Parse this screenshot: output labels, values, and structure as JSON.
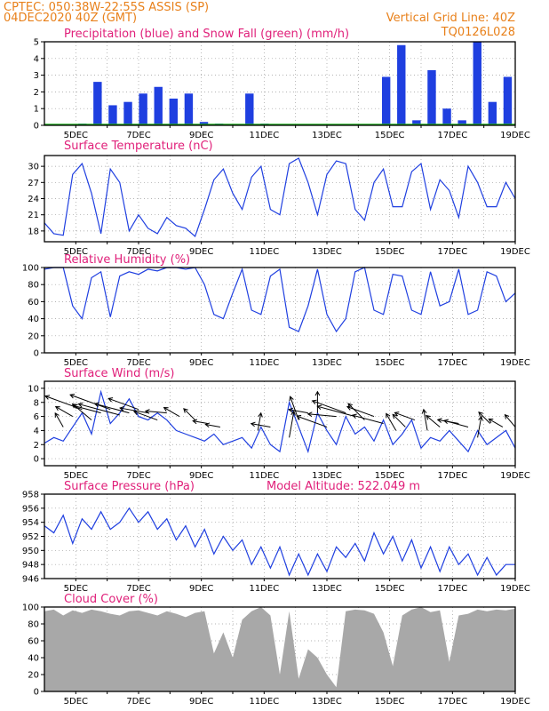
{
  "header": {
    "line1": "CPTEC:   050:38W-22:55S   ASSIS (SP)",
    "line2": "04DEC2020 40Z (GMT)",
    "grid_note": "Vertical Grid Line: 40Z",
    "code": "TQ0126L028"
  },
  "colors": {
    "header_text": "#e8801a",
    "panel_title": "#e0207a",
    "line": "#1f3fe0",
    "snow": "#20b020",
    "cloud": "#a8a8a8",
    "grid": "#9a9a9a"
  },
  "x_ticks": [
    "5DEC",
    "7DEC",
    "9DEC",
    "11DEC",
    "13DEC",
    "15DEC",
    "17DEC",
    "19DEC"
  ],
  "chart_data": [
    {
      "type": "bar",
      "title": "Precipitation (blue) and Snow Fall (green) (mm/h)",
      "ylim": [
        0,
        5
      ],
      "y_ticks": [
        "0",
        "1",
        "2",
        "3",
        "4",
        "5"
      ],
      "x": [
        "4DEC",
        "4.5DEC",
        "5DEC",
        "5.5DEC",
        "6DEC",
        "6.5DEC",
        "7DEC",
        "7.5DEC",
        "8DEC",
        "8.5DEC",
        "9DEC",
        "9.5DEC",
        "10DEC",
        "10.5DEC",
        "11DEC",
        "11.5DEC",
        "12DEC",
        "12.5DEC",
        "13DEC",
        "13.5DEC",
        "14DEC",
        "14.5DEC",
        "15DEC",
        "15.5DEC",
        "16DEC",
        "16.5DEC",
        "17DEC",
        "17.5DEC",
        "18DEC",
        "18.5DEC",
        "19DEC"
      ],
      "series": [
        {
          "name": "Precipitation",
          "values": [
            0,
            0,
            0.1,
            2.6,
            1.2,
            1.4,
            1.9,
            2.3,
            1.6,
            1.9,
            0.2,
            0.1,
            0,
            1.9,
            0.1,
            0,
            0,
            0,
            0,
            0,
            0,
            0,
            2.9,
            4.8,
            0.3,
            3.3,
            1.0,
            0.3,
            5.0,
            1.4,
            2.9
          ]
        },
        {
          "name": "Snow Fall",
          "values": [
            0,
            0,
            0,
            0,
            0,
            0,
            0,
            0,
            0,
            0,
            0,
            0,
            0,
            0,
            0,
            0,
            0,
            0,
            0,
            0,
            0,
            0,
            0,
            0,
            0,
            0,
            0,
            0,
            0,
            0,
            0
          ]
        }
      ]
    },
    {
      "type": "line",
      "title": "Surface Temperature (nC)",
      "ylim": [
        16,
        32
      ],
      "y_ticks": [
        "18",
        "21",
        "24",
        "27",
        "30"
      ],
      "x": [
        4.0,
        4.3,
        4.6,
        4.9,
        5.2,
        5.5,
        5.8,
        6.1,
        6.4,
        6.7,
        7.0,
        7.3,
        7.6,
        7.9,
        8.2,
        8.5,
        8.8,
        9.1,
        9.4,
        9.7,
        10.0,
        10.3,
        10.6,
        10.9,
        11.2,
        11.5,
        11.8,
        12.1,
        12.4,
        12.7,
        13.0,
        13.3,
        13.6,
        13.9,
        14.2,
        14.5,
        14.8,
        15.1,
        15.4,
        15.7,
        16.0,
        16.3,
        16.6,
        16.9,
        17.2,
        17.5,
        17.8,
        18.1,
        18.4,
        18.7,
        19.0
      ],
      "series": [
        {
          "name": "Surface Temperature",
          "values": [
            19.5,
            17.5,
            17.2,
            28.5,
            30.5,
            25.0,
            17.5,
            29.5,
            27.0,
            18.0,
            21.0,
            18.5,
            17.5,
            20.5,
            19.0,
            18.5,
            17.0,
            22.0,
            27.5,
            29.5,
            25.0,
            22.0,
            28.0,
            30.0,
            22.0,
            21.0,
            30.5,
            31.5,
            27.0,
            21.0,
            28.5,
            31.0,
            30.5,
            22.0,
            20.0,
            27.0,
            29.5,
            22.5,
            22.5,
            29.0,
            30.5,
            22.0,
            27.5,
            25.5,
            20.5,
            30.0,
            27.0,
            22.5,
            22.5,
            27.0,
            24.0
          ]
        }
      ]
    },
    {
      "type": "line",
      "title": "Relative Humidity (%)",
      "ylim": [
        0,
        100
      ],
      "y_ticks": [
        "0",
        "20",
        "40",
        "60",
        "80",
        "100"
      ],
      "x": [
        4.0,
        4.3,
        4.6,
        4.9,
        5.2,
        5.5,
        5.8,
        6.1,
        6.4,
        6.7,
        7.0,
        7.3,
        7.6,
        7.9,
        8.2,
        8.5,
        8.8,
        9.1,
        9.4,
        9.7,
        10.0,
        10.3,
        10.6,
        10.9,
        11.2,
        11.5,
        11.8,
        12.1,
        12.4,
        12.7,
        13.0,
        13.3,
        13.6,
        13.9,
        14.2,
        14.5,
        14.8,
        15.1,
        15.4,
        15.7,
        16.0,
        16.3,
        16.6,
        16.9,
        17.2,
        17.5,
        17.8,
        18.1,
        18.4,
        18.7,
        19.0
      ],
      "series": [
        {
          "name": "Relative Humidity",
          "values": [
            98,
            100,
            100,
            55,
            40,
            88,
            95,
            42,
            90,
            95,
            92,
            98,
            96,
            100,
            100,
            98,
            100,
            80,
            45,
            40,
            70,
            98,
            50,
            45,
            90,
            98,
            30,
            25,
            55,
            98,
            45,
            25,
            40,
            95,
            100,
            50,
            45,
            92,
            90,
            50,
            45,
            95,
            55,
            60,
            98,
            45,
            50,
            95,
            90,
            60,
            70
          ]
        }
      ]
    },
    {
      "type": "line",
      "title": "Surface Wind (m/s)",
      "ylim": [
        -1,
        11
      ],
      "y_ticks": [
        "0",
        "2",
        "4",
        "6",
        "8",
        "10"
      ],
      "x": [
        4.0,
        4.3,
        4.6,
        4.9,
        5.2,
        5.5,
        5.8,
        6.1,
        6.4,
        6.7,
        7.0,
        7.3,
        7.6,
        7.9,
        8.2,
        8.5,
        8.8,
        9.1,
        9.4,
        9.7,
        10.0,
        10.3,
        10.6,
        10.9,
        11.2,
        11.5,
        11.8,
        12.1,
        12.4,
        12.7,
        13.0,
        13.3,
        13.6,
        13.9,
        14.2,
        14.5,
        14.8,
        15.1,
        15.4,
        15.7,
        16.0,
        16.3,
        16.6,
        16.9,
        17.2,
        17.5,
        17.8,
        18.1,
        18.4,
        18.7,
        19.0
      ],
      "series": [
        {
          "name": "Surface Wind",
          "values": [
            2.2,
            3.0,
            2.5,
            4.5,
            6.5,
            3.5,
            9.5,
            5.0,
            6.5,
            8.5,
            6.0,
            5.5,
            6.5,
            5.5,
            4.0,
            3.5,
            3.0,
            2.5,
            3.5,
            2.0,
            2.5,
            3.0,
            1.5,
            4.5,
            2.0,
            1.0,
            8.0,
            4.5,
            1.0,
            6.5,
            4.0,
            2.0,
            6.0,
            3.5,
            4.5,
            2.5,
            5.5,
            2.0,
            3.5,
            5.5,
            1.5,
            3.0,
            2.5,
            4.0,
            2.5,
            1.0,
            4.0,
            2.0,
            3.0,
            4.0,
            1.5
          ]
        }
      ],
      "vectors": [
        {
          "x": 4.6,
          "y": 4.5,
          "angle": -120,
          "len": 0.15
        },
        {
          "x": 4.9,
          "y": 6.0,
          "angle": -150,
          "len": 0.25
        },
        {
          "x": 5.2,
          "y": 7.0,
          "angle": -160,
          "len": 0.8
        },
        {
          "x": 5.5,
          "y": 5.5,
          "angle": -140,
          "len": 0.4
        },
        {
          "x": 5.8,
          "y": 6.5,
          "angle": -165,
          "len": 0.5
        },
        {
          "x": 6.1,
          "y": 7.0,
          "angle": -160,
          "len": 0.9
        },
        {
          "x": 6.4,
          "y": 6.2,
          "angle": -165,
          "len": 0.9
        },
        {
          "x": 6.7,
          "y": 6.5,
          "angle": -165,
          "len": 0.7
        },
        {
          "x": 7.0,
          "y": 7.0,
          "angle": -160,
          "len": 0.6
        },
        {
          "x": 7.3,
          "y": 6.5,
          "angle": -170,
          "len": 0.5
        },
        {
          "x": 7.6,
          "y": 5.5,
          "angle": -160,
          "len": 0.4
        },
        {
          "x": 7.9,
          "y": 6.5,
          "angle": -175,
          "len": 0.3
        },
        {
          "x": 8.3,
          "y": 6.0,
          "angle": -150,
          "len": 0.2
        },
        {
          "x": 8.8,
          "y": 5.5,
          "angle": -135,
          "len": 0.15
        },
        {
          "x": 9.2,
          "y": 5.0,
          "angle": -170,
          "len": 0.12
        },
        {
          "x": 9.6,
          "y": 4.5,
          "angle": -170,
          "len": 0.12
        },
        {
          "x": 10.8,
          "y": 4.0,
          "angle": -80,
          "len": 0.2
        },
        {
          "x": 11.2,
          "y": 4.5,
          "angle": -170,
          "len": 0.25
        },
        {
          "x": 11.8,
          "y": 3.0,
          "angle": -80,
          "len": 0.45
        },
        {
          "x": 12.1,
          "y": 5.5,
          "angle": -110,
          "len": 0.4
        },
        {
          "x": 12.4,
          "y": 6.5,
          "angle": -170,
          "len": 0.25
        },
        {
          "x": 12.7,
          "y": 6.5,
          "angle": -90,
          "len": 0.3
        },
        {
          "x": 13.0,
          "y": 4.5,
          "angle": -160,
          "len": 0.6
        },
        {
          "x": 13.3,
          "y": 6.0,
          "angle": -175,
          "len": 0.5
        },
        {
          "x": 13.6,
          "y": 6.5,
          "angle": -160,
          "len": 0.7
        },
        {
          "x": 13.9,
          "y": 6.0,
          "angle": -165,
          "len": 0.8
        },
        {
          "x": 14.2,
          "y": 5.5,
          "angle": -135,
          "len": 0.35
        },
        {
          "x": 14.5,
          "y": 6.0,
          "angle": -160,
          "len": 0.5
        },
        {
          "x": 14.8,
          "y": 5.0,
          "angle": -165,
          "len": 0.6
        },
        {
          "x": 15.2,
          "y": 4.0,
          "angle": -120,
          "len": 0.25
        },
        {
          "x": 15.5,
          "y": 4.5,
          "angle": -135,
          "len": 0.2
        },
        {
          "x": 15.8,
          "y": 5.5,
          "angle": -160,
          "len": 0.3
        },
        {
          "x": 16.2,
          "y": 4.0,
          "angle": -100,
          "len": 0.3
        },
        {
          "x": 16.6,
          "y": 4.5,
          "angle": -140,
          "len": 0.2
        },
        {
          "x": 17.2,
          "y": 5.0,
          "angle": -170,
          "len": 0.3
        },
        {
          "x": 17.5,
          "y": 4.5,
          "angle": -165,
          "len": 0.4
        },
        {
          "x": 17.8,
          "y": 3.0,
          "angle": -80,
          "len": 0.3
        },
        {
          "x": 18.2,
          "y": 5.0,
          "angle": -135,
          "len": 0.15
        },
        {
          "x": 18.6,
          "y": 4.5,
          "angle": -150,
          "len": 0.15
        },
        {
          "x": 19.0,
          "y": 4.5,
          "angle": -130,
          "len": 0.15
        }
      ]
    },
    {
      "type": "line",
      "title": "Surface Pressure (hPa)",
      "annotation": "Model Altitude: 522.049 m",
      "ylim": [
        946,
        958
      ],
      "y_ticks": [
        "946",
        "948",
        "950",
        "952",
        "954",
        "956",
        "958"
      ],
      "x": [
        4.0,
        4.3,
        4.6,
        4.9,
        5.2,
        5.5,
        5.8,
        6.1,
        6.4,
        6.7,
        7.0,
        7.3,
        7.6,
        7.9,
        8.2,
        8.5,
        8.8,
        9.1,
        9.4,
        9.7,
        10.0,
        10.3,
        10.6,
        10.9,
        11.2,
        11.5,
        11.8,
        12.1,
        12.4,
        12.7,
        13.0,
        13.3,
        13.6,
        13.9,
        14.2,
        14.5,
        14.8,
        15.1,
        15.4,
        15.7,
        16.0,
        16.3,
        16.6,
        16.9,
        17.2,
        17.5,
        17.8,
        18.1,
        18.4,
        18.7,
        19.0
      ],
      "series": [
        {
          "name": "Surface Pressure",
          "values": [
            953.5,
            952.5,
            955.0,
            951.0,
            954.5,
            953.0,
            955.5,
            953.0,
            954.0,
            956.0,
            954.0,
            955.5,
            953.0,
            954.5,
            951.5,
            953.5,
            950.5,
            953.0,
            949.5,
            952.0,
            950.0,
            951.5,
            948.0,
            950.5,
            947.5,
            950.5,
            946.5,
            949.5,
            946.5,
            949.5,
            947.0,
            950.5,
            949.0,
            951.0,
            948.5,
            952.5,
            949.5,
            952.0,
            948.5,
            951.5,
            947.5,
            950.5,
            947.0,
            950.5,
            948.0,
            949.5,
            946.5,
            949.0,
            946.5,
            948.0,
            948.0
          ]
        }
      ]
    },
    {
      "type": "area",
      "title": "Cloud Cover (%)",
      "ylim": [
        0,
        100
      ],
      "y_ticks": [
        "0",
        "20",
        "40",
        "60",
        "80",
        "100"
      ],
      "x": [
        4.0,
        4.3,
        4.6,
        4.9,
        5.2,
        5.5,
        5.8,
        6.1,
        6.4,
        6.7,
        7.0,
        7.3,
        7.6,
        7.9,
        8.2,
        8.5,
        8.8,
        9.1,
        9.4,
        9.7,
        10.0,
        10.3,
        10.6,
        10.9,
        11.2,
        11.5,
        11.8,
        12.1,
        12.4,
        12.7,
        13.0,
        13.3,
        13.6,
        13.9,
        14.2,
        14.5,
        14.8,
        15.1,
        15.4,
        15.7,
        16.0,
        16.3,
        16.6,
        16.9,
        17.2,
        17.5,
        17.8,
        18.1,
        18.4,
        18.7,
        19.0
      ],
      "series": [
        {
          "name": "Cloud Cover",
          "values": [
            95,
            97,
            90,
            96,
            93,
            97,
            95,
            92,
            90,
            95,
            96,
            93,
            90,
            95,
            92,
            88,
            93,
            95,
            45,
            70,
            40,
            85,
            95,
            100,
            90,
            20,
            95,
            15,
            50,
            40,
            20,
            5,
            95,
            97,
            96,
            92,
            70,
            30,
            90,
            97,
            100,
            94,
            96,
            35,
            90,
            92,
            97,
            95,
            97,
            96,
            98
          ]
        }
      ]
    }
  ]
}
